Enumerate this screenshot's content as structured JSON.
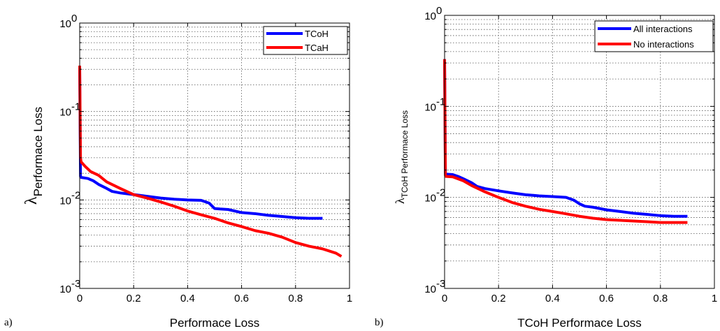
{
  "chart_data": [
    {
      "panel_label": "a)",
      "type": "line",
      "xlabel": "Performace Loss",
      "ylabel_main": "λ",
      "ylabel_sub": "Performace Loss",
      "xscale": "linear",
      "yscale": "log",
      "xlim": [
        0,
        1
      ],
      "ylim": [
        0.001,
        1
      ],
      "x_ticks": [
        0,
        0.2,
        0.4,
        0.6,
        0.8,
        1
      ],
      "x_tick_labels": [
        "0",
        "0.2",
        "0.4",
        "0.6",
        "0.8",
        "1"
      ],
      "y_ticks": [
        0.001,
        0.01,
        0.1,
        1
      ],
      "y_tick_labels": [
        {
          "base": "10",
          "exp": "-3"
        },
        {
          "base": "10",
          "exp": "-2"
        },
        {
          "base": "10",
          "exp": "-1"
        },
        {
          "base": "10",
          "exp": "0"
        }
      ],
      "grid": true,
      "legend_position": "top-right",
      "series": [
        {
          "name": "TCoH",
          "color": "#0000ff",
          "x": [
            0,
            0.003,
            0.005,
            0.03,
            0.05,
            0.07,
            0.1,
            0.12,
            0.15,
            0.2,
            0.25,
            0.3,
            0.35,
            0.4,
            0.45,
            0.48,
            0.5,
            0.52,
            0.55,
            0.6,
            0.65,
            0.7,
            0.75,
            0.8,
            0.85,
            0.9
          ],
          "y": [
            0.33,
            0.0185,
            0.018,
            0.0175,
            0.0165,
            0.015,
            0.0135,
            0.0125,
            0.012,
            0.0115,
            0.011,
            0.0105,
            0.0102,
            0.01,
            0.0099,
            0.0092,
            0.008,
            0.0079,
            0.0078,
            0.0072,
            0.007,
            0.0067,
            0.0065,
            0.0063,
            0.0062,
            0.0062
          ]
        },
        {
          "name": "TCaH",
          "color": "#ff0000",
          "x": [
            0,
            0.003,
            0.005,
            0.02,
            0.04,
            0.07,
            0.1,
            0.15,
            0.2,
            0.25,
            0.3,
            0.35,
            0.4,
            0.45,
            0.5,
            0.55,
            0.6,
            0.65,
            0.7,
            0.75,
            0.8,
            0.85,
            0.9,
            0.95,
            0.97
          ],
          "y": [
            0.33,
            0.03,
            0.027,
            0.024,
            0.021,
            0.019,
            0.016,
            0.0135,
            0.0115,
            0.0105,
            0.0095,
            0.0085,
            0.0075,
            0.0068,
            0.0062,
            0.0055,
            0.005,
            0.0045,
            0.0042,
            0.0038,
            0.0033,
            0.003,
            0.0028,
            0.0025,
            0.0023
          ]
        }
      ]
    },
    {
      "panel_label": "b)",
      "type": "line",
      "xlabel": "TCoH Performace Loss",
      "ylabel_main": "λ",
      "ylabel_sub": "TCoH Performace Loss",
      "xscale": "linear",
      "yscale": "log",
      "xlim": [
        0,
        1
      ],
      "ylim": [
        0.001,
        1
      ],
      "x_ticks": [
        0,
        0.2,
        0.4,
        0.6,
        0.8,
        1
      ],
      "x_tick_labels": [
        "0",
        "0.2",
        "0.4",
        "0.6",
        "0.8",
        "1"
      ],
      "y_ticks": [
        0.001,
        0.01,
        0.1,
        1
      ],
      "y_tick_labels": [
        {
          "base": "10",
          "exp": "-3"
        },
        {
          "base": "10",
          "exp": "-2"
        },
        {
          "base": "10",
          "exp": "-1"
        },
        {
          "base": "10",
          "exp": "0"
        }
      ],
      "grid": true,
      "legend_position": "top-right",
      "series": [
        {
          "name": "All interactions",
          "color": "#0000ff",
          "x": [
            0,
            0.003,
            0.005,
            0.03,
            0.05,
            0.07,
            0.1,
            0.12,
            0.15,
            0.2,
            0.25,
            0.3,
            0.35,
            0.4,
            0.45,
            0.48,
            0.5,
            0.52,
            0.55,
            0.6,
            0.65,
            0.7,
            0.75,
            0.8,
            0.85,
            0.9
          ],
          "y": [
            0.33,
            0.0185,
            0.018,
            0.0178,
            0.017,
            0.016,
            0.0145,
            0.0132,
            0.0125,
            0.0118,
            0.0112,
            0.0107,
            0.0104,
            0.0102,
            0.01,
            0.0093,
            0.0085,
            0.008,
            0.0078,
            0.0073,
            0.007,
            0.0067,
            0.0065,
            0.0063,
            0.0062,
            0.0062
          ]
        },
        {
          "name": "No interactions",
          "color": "#ff0000",
          "x": [
            0,
            0.003,
            0.005,
            0.03,
            0.05,
            0.07,
            0.1,
            0.15,
            0.2,
            0.25,
            0.3,
            0.35,
            0.4,
            0.45,
            0.5,
            0.55,
            0.6,
            0.65,
            0.7,
            0.75,
            0.8,
            0.85,
            0.9
          ],
          "y": [
            0.33,
            0.0175,
            0.017,
            0.0168,
            0.016,
            0.0152,
            0.0135,
            0.0115,
            0.01,
            0.0088,
            0.008,
            0.0074,
            0.007,
            0.0066,
            0.0062,
            0.0059,
            0.0057,
            0.0056,
            0.0055,
            0.0054,
            0.0053,
            0.0053,
            0.0053
          ]
        }
      ]
    }
  ]
}
